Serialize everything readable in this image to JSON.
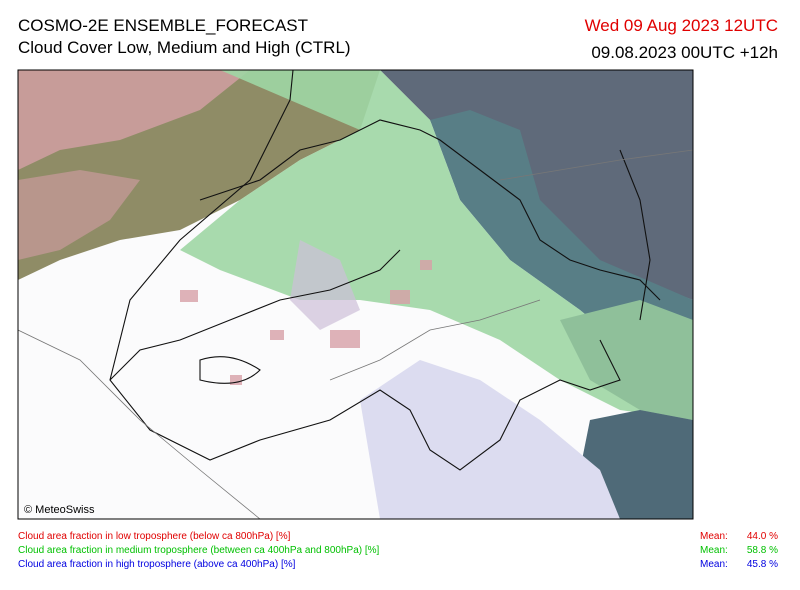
{
  "header": {
    "title": "COSMO-2E ENSEMBLE_FORECAST",
    "subtitle": "Cloud Cover Low, Medium and High (CTRL)",
    "valid_time": "Wed 09 Aug 2023 12UTC",
    "run_time": "09.08.2023 00UTC +12h"
  },
  "map": {
    "credit": "© MeteoSwiss"
  },
  "legend": {
    "items": [
      {
        "label": "Cloud area fraction in low troposphere (below ca 800hPa) [%]",
        "color": "#e00000",
        "mean_label": "Mean:",
        "mean": "44.0 %"
      },
      {
        "label": "Cloud area fraction in medium troposphere (between ca 400hPa and 800hPa) [%]",
        "color": "#00c000",
        "mean_label": "Mean:",
        "mean": "58.8 %"
      },
      {
        "label": "Cloud area fraction in high troposphere (above ca 400hPa) [%]",
        "color": "#0000e0",
        "mean_label": "Mean:",
        "mean": "45.8 %"
      }
    ]
  }
}
